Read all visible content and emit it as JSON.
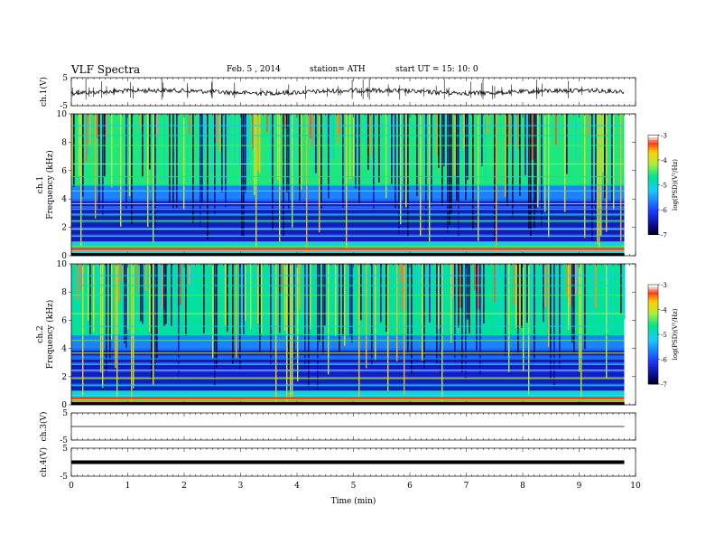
{
  "header": {
    "title": "VLF  Spectra",
    "date": "Feb. 5  , 2014",
    "station": "station= ATH",
    "start": "start  UT  =   15: 10: 0"
  },
  "colors": {
    "accent": "#000000"
  },
  "chart_data": [
    {
      "type": "line",
      "panel": "ch1-waveform",
      "ylabel": "ch.1(V)",
      "ylim": [
        -5,
        5
      ],
      "yticks": [
        "5",
        "-5"
      ],
      "xlim": [
        0,
        10
      ],
      "series": [
        {
          "values_note": "noisy trace around 0 V",
          "level": 0
        }
      ]
    },
    {
      "type": "heatmap",
      "panel": "ch1-spectrogram",
      "ylabel_line1": "ch.1",
      "ylabel_line2": "Frequency  (kHz)",
      "ylim": [
        0,
        10
      ],
      "yticks": [
        "0",
        "2",
        "4",
        "6",
        "8",
        "10"
      ],
      "xlim": [
        0,
        10
      ],
      "data_end_min": 9.8,
      "colorbar": {
        "label": "log(PSD)(V²/Hz)",
        "range": [
          -7,
          -3
        ],
        "ticks": [
          "-3",
          "-4",
          "-5",
          "-6",
          "-7"
        ]
      }
    },
    {
      "type": "heatmap",
      "panel": "ch2-spectrogram",
      "ylabel_line1": "ch.2",
      "ylabel_line2": "Frequency  (kHz)",
      "ylim": [
        0,
        10
      ],
      "yticks": [
        "0",
        "2",
        "4",
        "6",
        "8",
        "10"
      ],
      "xlim": [
        0,
        10
      ],
      "data_end_min": 9.8,
      "colorbar": {
        "label": "log(PSD)(V²/Hz)",
        "range": [
          -7,
          -3
        ],
        "ticks": [
          "-3",
          "-4",
          "-5",
          "-6",
          "-7"
        ]
      }
    },
    {
      "type": "line",
      "panel": "ch3-waveform",
      "ylabel": "ch.3(V)",
      "ylim": [
        -5,
        5
      ],
      "yticks": [
        "5",
        "-5"
      ],
      "xlim": [
        0,
        10
      ],
      "series": [
        {
          "values_note": "flat trace",
          "level": 0
        }
      ]
    },
    {
      "type": "line",
      "panel": "ch4-waveform",
      "ylabel": "ch.4(V)",
      "ylim": [
        -5,
        5
      ],
      "yticks": [
        "5",
        "-5"
      ],
      "xlim": [
        0,
        10
      ],
      "series": [
        {
          "values_note": "thick flat trace",
          "level": 0
        }
      ]
    }
  ],
  "xaxis": {
    "label": "Time  (min)",
    "ticks": [
      "0",
      "1",
      "2",
      "3",
      "4",
      "5",
      "6",
      "7",
      "8",
      "9",
      "10"
    ]
  }
}
